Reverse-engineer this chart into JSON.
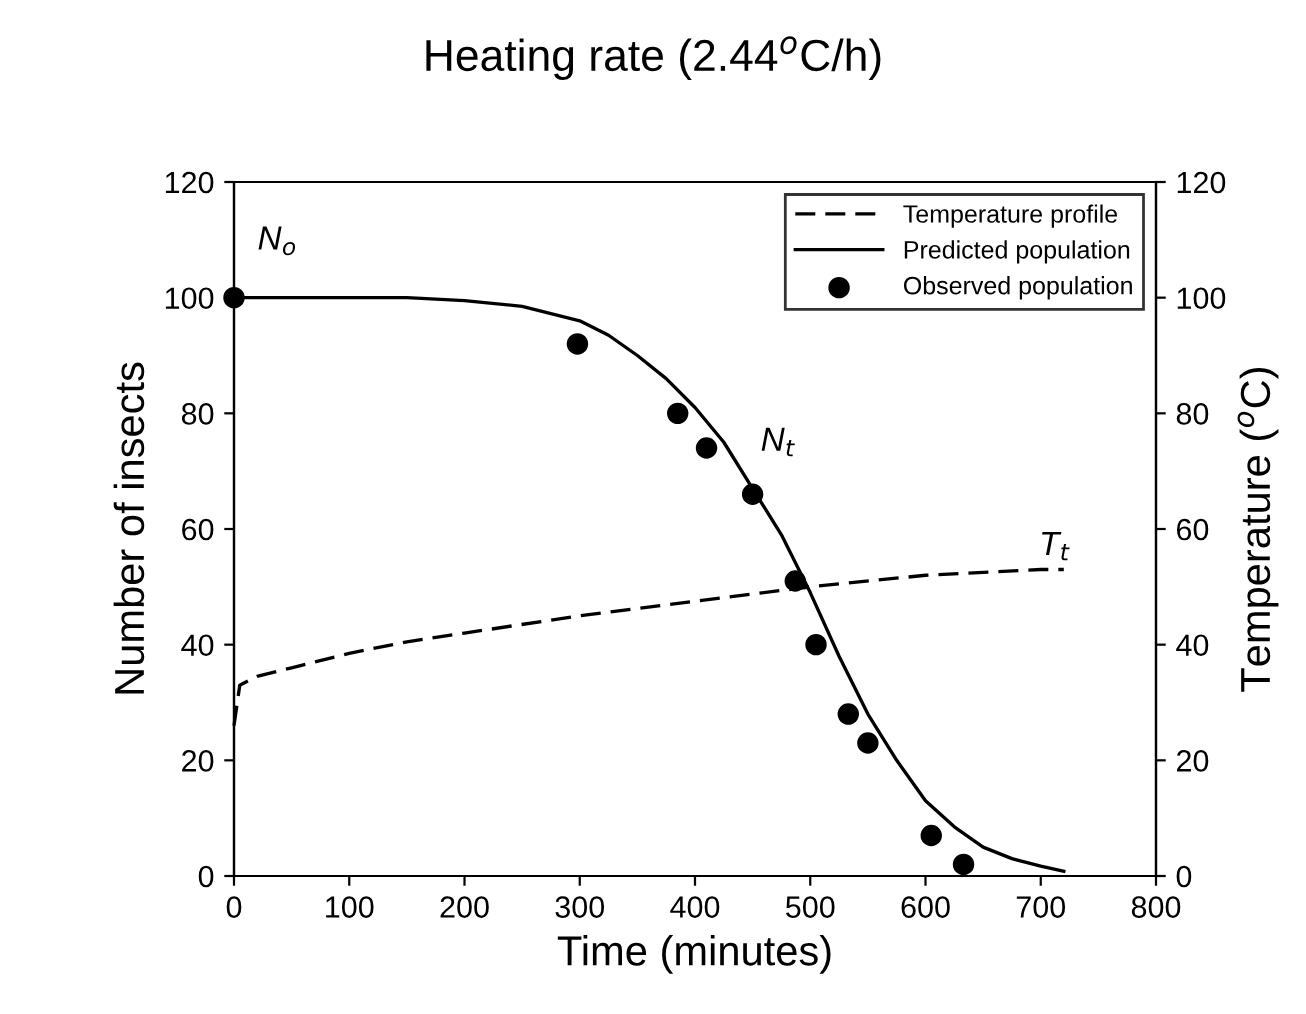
{
  "chart_data": {
    "type": "line",
    "title": "Heating rate (2.44$^{o}$C/h)",
    "xlabel": "Time (minutes)",
    "ylabel": "Number of insects",
    "y2label": "Temperature ($^{o}$C)",
    "xlim": [
      0,
      800
    ],
    "xticks": [
      0,
      100,
      200,
      300,
      400,
      500,
      600,
      700,
      800
    ],
    "ylim": [
      0,
      120
    ],
    "yticks": [
      0,
      20,
      40,
      60,
      80,
      100,
      120
    ],
    "y2lim": [
      0,
      120
    ],
    "y2ticks": [
      0,
      20,
      40,
      60,
      80,
      100,
      120
    ],
    "legend": "top right",
    "grid": false,
    "series": [
      {
        "name": "Temperature profile",
        "axis": "y2",
        "color": "#000000",
        "line_style": "dashed",
        "marker": "none",
        "x": [
          0,
          5,
          20,
          50,
          100,
          150,
          200,
          300,
          400,
          500,
          600,
          700,
          720
        ],
        "values": [
          26,
          33,
          34.5,
          36,
          38.5,
          40.5,
          42,
          45,
          47.5,
          50,
          52,
          53,
          53
        ]
      },
      {
        "name": "Predicted population",
        "color": "#000000",
        "line_style": "solid",
        "marker": "none",
        "x": [
          0,
          150,
          200,
          250,
          300,
          325,
          350,
          375,
          400,
          425,
          450,
          475,
          500,
          525,
          550,
          575,
          600,
          625,
          650,
          675,
          700,
          720
        ],
        "values": [
          100,
          100,
          99.5,
          98.5,
          96,
          93.5,
          90,
          86,
          81,
          75,
          67,
          59,
          49,
          38,
          28,
          20,
          13,
          8.5,
          5,
          3,
          1.7,
          0.8
        ]
      },
      {
        "name": "Observed population",
        "type": "scatter",
        "color": "#000000",
        "marker": "circle",
        "x": [
          0,
          298,
          385,
          410,
          450,
          487,
          505,
          533,
          550,
          605,
          633
        ],
        "values": [
          100,
          92,
          80,
          74,
          66,
          51,
          40,
          28,
          23,
          7,
          2
        ]
      }
    ],
    "annotations": [
      "N$_{o}$",
      "N$_{t}$",
      "T$_{t}$"
    ]
  }
}
